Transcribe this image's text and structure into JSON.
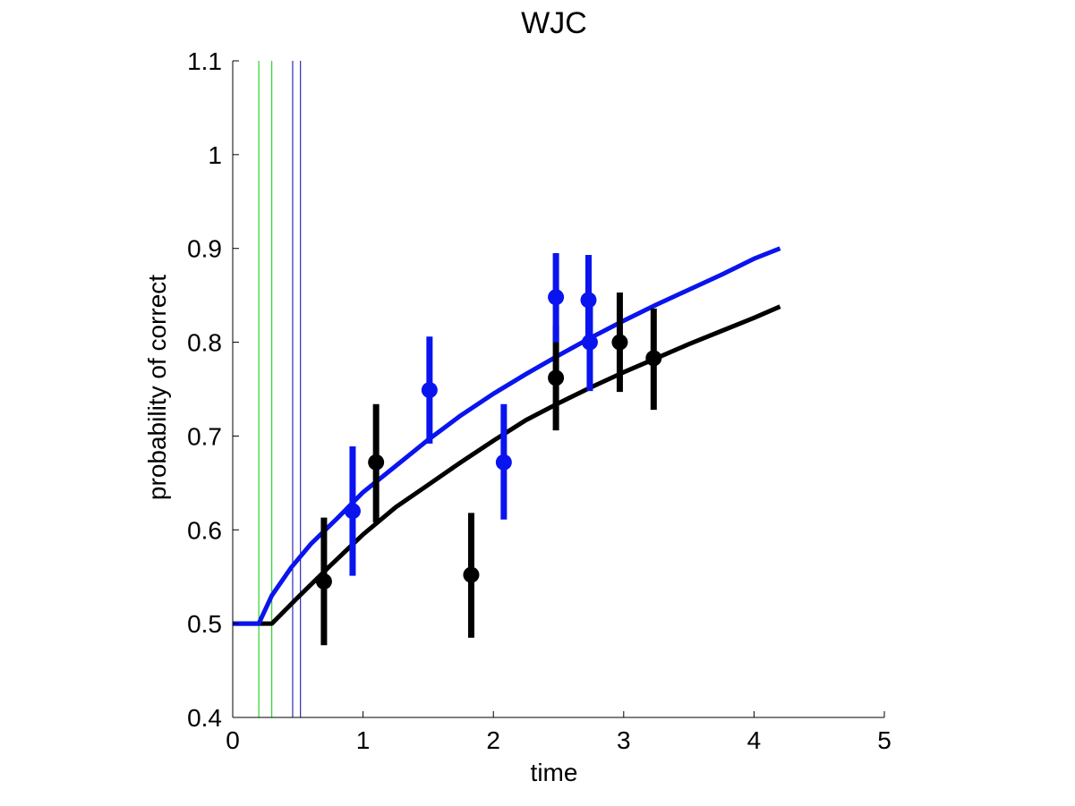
{
  "chart_data": {
    "type": "line",
    "title": "WJC",
    "xlabel": "time",
    "ylabel": "probability of correct",
    "xlim": [
      0,
      5
    ],
    "ylim": [
      0.4,
      1.1
    ],
    "grid": false,
    "xticks": [
      "0",
      "1",
      "2",
      "3",
      "4",
      "5"
    ],
    "yticks": [
      "0.4",
      "0.5",
      "0.6",
      "0.7",
      "0.8",
      "0.9",
      "1",
      "1.1"
    ],
    "vertical_lines": [
      {
        "x": 0.2,
        "color": "#00cc00"
      },
      {
        "x": 0.3,
        "color": "#00cc00"
      },
      {
        "x": 0.46,
        "color": "#0000aa"
      },
      {
        "x": 0.52,
        "color": "#0000aa"
      }
    ],
    "series": [
      {
        "color": "#000000",
        "curve": {
          "x": [
            0,
            0.3,
            0.5,
            0.75,
            1.0,
            1.25,
            1.5,
            1.75,
            2.0,
            2.25,
            2.5,
            2.75,
            3.0,
            3.25,
            3.5,
            3.75,
            4.0,
            4.2
          ],
          "y": [
            0.5,
            0.5,
            0.528,
            0.562,
            0.595,
            0.624,
            0.648,
            0.672,
            0.695,
            0.717,
            0.735,
            0.752,
            0.768,
            0.783,
            0.798,
            0.812,
            0.826,
            0.838
          ]
        },
        "points": [
          {
            "x": 0.7,
            "y": 0.545,
            "lo": 0.477,
            "hi": 0.613
          },
          {
            "x": 1.1,
            "y": 0.672,
            "lo": 0.608,
            "hi": 0.734
          },
          {
            "x": 1.83,
            "y": 0.552,
            "lo": 0.485,
            "hi": 0.618
          },
          {
            "x": 2.48,
            "y": 0.762,
            "lo": 0.706,
            "hi": 0.818
          },
          {
            "x": 2.97,
            "y": 0.8,
            "lo": 0.747,
            "hi": 0.853
          },
          {
            "x": 3.23,
            "y": 0.783,
            "lo": 0.728,
            "hi": 0.836
          }
        ]
      },
      {
        "color": "#0a14ee",
        "curve": {
          "x": [
            0,
            0.2,
            0.3,
            0.45,
            0.6,
            0.8,
            1.0,
            1.25,
            1.5,
            1.75,
            2.0,
            2.25,
            2.5,
            2.75,
            3.0,
            3.25,
            3.5,
            3.75,
            4.0,
            4.2
          ],
          "y": [
            0.5,
            0.5,
            0.53,
            0.56,
            0.585,
            0.612,
            0.64,
            0.668,
            0.696,
            0.722,
            0.745,
            0.766,
            0.786,
            0.805,
            0.823,
            0.84,
            0.856,
            0.872,
            0.889,
            0.9
          ]
        },
        "points": [
          {
            "x": 0.92,
            "y": 0.62,
            "lo": 0.551,
            "hi": 0.689
          },
          {
            "x": 1.51,
            "y": 0.749,
            "lo": 0.692,
            "hi": 0.806
          },
          {
            "x": 2.08,
            "y": 0.672,
            "lo": 0.611,
            "hi": 0.734
          },
          {
            "x": 2.48,
            "y": 0.848,
            "lo": 0.8,
            "hi": 0.895
          },
          {
            "x": 2.73,
            "y": 0.845,
            "lo": 0.796,
            "hi": 0.893
          },
          {
            "x": 2.74,
            "y": 0.8,
            "lo": 0.748,
            "hi": 0.852
          }
        ]
      }
    ]
  }
}
